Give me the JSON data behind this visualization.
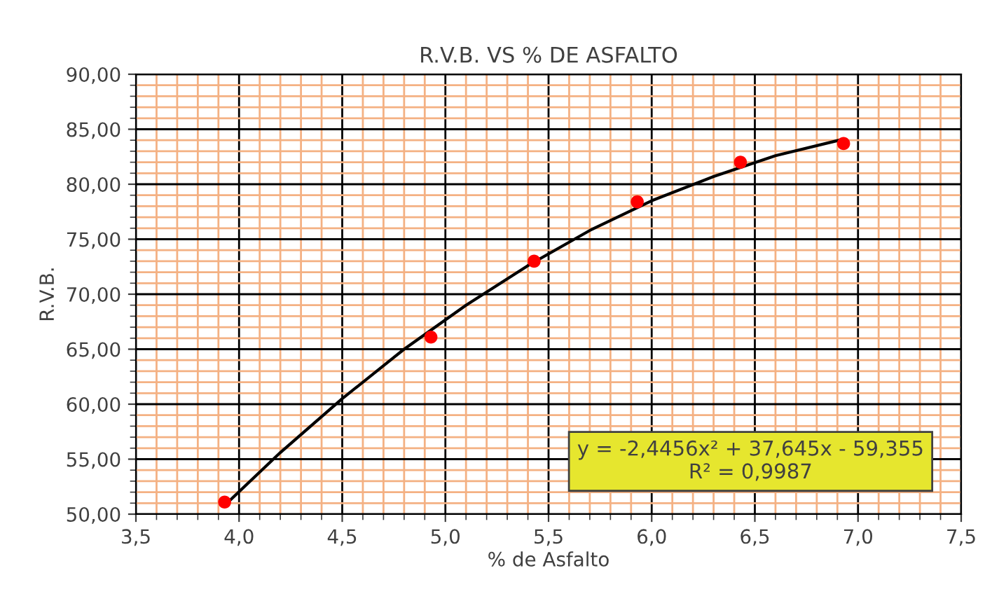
{
  "chart_data": {
    "type": "scatter",
    "title": "R.V.B. VS % DE ASFALTO",
    "xlabel": "% de Asfalto",
    "ylabel": "R.V.B.",
    "series": [
      {
        "color": "#ff0000",
        "marker": "circle",
        "x": [
          3.93,
          4.93,
          5.43,
          5.93,
          6.43,
          6.93
        ],
        "values": [
          51.1,
          66.1,
          73.0,
          78.4,
          82.0,
          83.7
        ]
      },
      {
        "type": "line",
        "color": "#000000",
        "marker": "none",
        "line_style": "solid",
        "x": [
          3.93,
          4.2,
          4.5,
          4.8,
          5.1,
          5.4,
          5.7,
          6.0,
          6.3,
          6.6,
          6.93
        ],
        "values": [
          50.8,
          55.6,
          60.5,
          65.0,
          69.0,
          72.6,
          75.8,
          78.5,
          80.7,
          82.6,
          84.1
        ]
      }
    ],
    "xlim": [
      3.5,
      7.5
    ],
    "ylim": [
      50,
      90
    ],
    "xticks": [
      {
        "value": 3.5,
        "label": "3,5"
      },
      {
        "value": 3.6,
        "label": null
      },
      {
        "value": 3.7,
        "label": null
      },
      {
        "value": 3.8,
        "label": null
      },
      {
        "value": 3.9,
        "label": null
      },
      {
        "value": 4.0,
        "label": "4,0"
      },
      {
        "value": 4.1,
        "label": null
      },
      {
        "value": 4.2,
        "label": null
      },
      {
        "value": 4.3,
        "label": null
      },
      {
        "value": 4.4,
        "label": null
      },
      {
        "value": 4.5,
        "label": "4,5"
      },
      {
        "value": 4.6,
        "label": null
      },
      {
        "value": 4.7,
        "label": null
      },
      {
        "value": 4.8,
        "label": null
      },
      {
        "value": 4.9,
        "label": null
      },
      {
        "value": 5.0,
        "label": "5,0"
      },
      {
        "value": 5.1,
        "label": null
      },
      {
        "value": 5.2,
        "label": null
      },
      {
        "value": 5.3,
        "label": null
      },
      {
        "value": 5.4,
        "label": null
      },
      {
        "value": 5.5,
        "label": "5,5"
      },
      {
        "value": 5.6,
        "label": null
      },
      {
        "value": 5.7,
        "label": null
      },
      {
        "value": 5.8,
        "label": null
      },
      {
        "value": 5.9,
        "label": null
      },
      {
        "value": 6.0,
        "label": "6,0"
      },
      {
        "value": 6.1,
        "label": null
      },
      {
        "value": 6.2,
        "label": null
      },
      {
        "value": 6.3,
        "label": null
      },
      {
        "value": 6.4,
        "label": null
      },
      {
        "value": 6.5,
        "label": "6,5"
      },
      {
        "value": 6.6,
        "label": null
      },
      {
        "value": 6.7,
        "label": null
      },
      {
        "value": 6.8,
        "label": null
      },
      {
        "value": 6.9,
        "label": null
      },
      {
        "value": 7.0,
        "label": "7,0"
      },
      {
        "value": 7.1,
        "label": null
      },
      {
        "value": 7.2,
        "label": null
      },
      {
        "value": 7.3,
        "label": null
      },
      {
        "value": 7.4,
        "label": null
      },
      {
        "value": 7.5,
        "label": "7,5"
      }
    ],
    "yticks": [
      {
        "value": 50,
        "label": "50,00"
      },
      {
        "value": 51,
        "label": null
      },
      {
        "value": 52,
        "label": null
      },
      {
        "value": 53,
        "label": null
      },
      {
        "value": 54,
        "label": null
      },
      {
        "value": 55,
        "label": "55,00"
      },
      {
        "value": 56,
        "label": null
      },
      {
        "value": 57,
        "label": null
      },
      {
        "value": 58,
        "label": null
      },
      {
        "value": 59,
        "label": null
      },
      {
        "value": 60,
        "label": "60,00"
      },
      {
        "value": 61,
        "label": null
      },
      {
        "value": 62,
        "label": null
      },
      {
        "value": 63,
        "label": null
      },
      {
        "value": 64,
        "label": null
      },
      {
        "value": 65,
        "label": "65,00"
      },
      {
        "value": 66,
        "label": null
      },
      {
        "value": 67,
        "label": null
      },
      {
        "value": 68,
        "label": null
      },
      {
        "value": 69,
        "label": null
      },
      {
        "value": 70,
        "label": "70,00"
      },
      {
        "value": 71,
        "label": null
      },
      {
        "value": 72,
        "label": null
      },
      {
        "value": 73,
        "label": null
      },
      {
        "value": 74,
        "label": null
      },
      {
        "value": 75,
        "label": "75,00"
      },
      {
        "value": 76,
        "label": null
      },
      {
        "value": 77,
        "label": null
      },
      {
        "value": 78,
        "label": null
      },
      {
        "value": 79,
        "label": null
      },
      {
        "value": 80,
        "label": "80,00"
      },
      {
        "value": 81,
        "label": null
      },
      {
        "value": 82,
        "label": null
      },
      {
        "value": 83,
        "label": null
      },
      {
        "value": 84,
        "label": null
      },
      {
        "value": 85,
        "label": "85,00"
      },
      {
        "value": 86,
        "label": null
      },
      {
        "value": 87,
        "label": null
      },
      {
        "value": 88,
        "label": null
      },
      {
        "value": 89,
        "label": null
      },
      {
        "value": 90,
        "label": "90,00"
      }
    ],
    "grid": true,
    "annotations": [
      "y = -2,4456x² + 37,645x - 59,355\nR² = 0,9987"
    ]
  }
}
